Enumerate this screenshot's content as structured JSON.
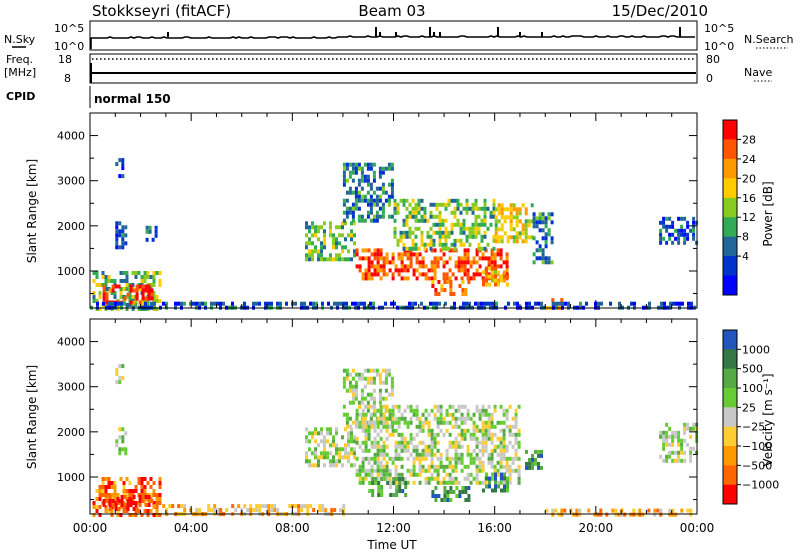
{
  "header": {
    "station": "Stokkseyri (fitACF)",
    "beam": "Beam 03",
    "date": "15/Dec/2010"
  },
  "top_panels": {
    "nsky_label": "N.Sky",
    "nsky_ticks": [
      "10^5",
      "10^0"
    ],
    "nsearch_label": "N.Search",
    "nsearch_ticks": [
      "10^5",
      "10^0"
    ],
    "freq_label_1": "Freq.",
    "freq_label_2": "[MHz]",
    "freq_ticks": [
      "18",
      "8"
    ],
    "nave_label": "Nave",
    "nave_ticks": [
      "80",
      "0"
    ],
    "cpid_label": "CPID",
    "cpid_value": "normal 150"
  },
  "colorbars": {
    "power": {
      "label": "Power [dB]",
      "ticks": [
        "28",
        "24",
        "20",
        "16",
        "12",
        "8",
        "4"
      ],
      "colors": [
        "#ff0000",
        "#ff5500",
        "#ff9900",
        "#ffcc00",
        "#88cc22",
        "#33aa55",
        "#226699",
        "#0033cc",
        "#0000ff"
      ]
    },
    "velocity": {
      "label": "Velocity [m s⁻¹]",
      "ticks": [
        "1000",
        "500",
        "100",
        "25",
        "−25",
        "−100",
        "−500",
        "−1000"
      ],
      "colors": [
        "#2255bb",
        "#337744",
        "#55aa44",
        "#66cc33",
        "#c8c8c8",
        "#ffcc33",
        "#ff9900",
        "#ff6600",
        "#ff0000"
      ]
    }
  },
  "chart_data": [
    {
      "type": "heatmap",
      "name": "Power",
      "ylabel": "Slant Range [km]",
      "xlabel": "",
      "ylim": [
        180,
        4500
      ],
      "yticks": [
        1000,
        2000,
        3000,
        4000
      ],
      "xlim": [
        0,
        24
      ],
      "xtick_labels": [],
      "blobs": [
        {
          "t0": 0.1,
          "t1": 2.8,
          "r0": 200,
          "r1": 1000,
          "level": 0.45
        },
        {
          "t0": 0.5,
          "t1": 2.5,
          "r0": 300,
          "r1": 700,
          "level": 0.9
        },
        {
          "t0": 1.0,
          "t1": 1.3,
          "r0": 3100,
          "r1": 3500,
          "level": 0.15
        },
        {
          "t0": 1.0,
          "t1": 1.4,
          "r0": 1500,
          "r1": 2100,
          "level": 0.2
        },
        {
          "t0": 2.2,
          "t1": 2.6,
          "r0": 1700,
          "r1": 2000,
          "level": 0.3
        },
        {
          "t0": 8.5,
          "t1": 10.5,
          "r0": 1300,
          "r1": 2100,
          "level": 0.45
        },
        {
          "t0": 10.0,
          "t1": 12.0,
          "r0": 2100,
          "r1": 3400,
          "level": 0.3
        },
        {
          "t0": 10.5,
          "t1": 16.5,
          "r0": 850,
          "r1": 1500,
          "level": 0.85
        },
        {
          "t0": 12.0,
          "t1": 16.0,
          "r0": 1500,
          "r1": 2600,
          "level": 0.45
        },
        {
          "t0": 13.5,
          "t1": 15.0,
          "r0": 500,
          "r1": 800,
          "level": 0.75
        },
        {
          "t0": 16.0,
          "t1": 17.5,
          "r0": 1700,
          "r1": 2500,
          "level": 0.6
        },
        {
          "t0": 15.5,
          "t1": 16.5,
          "r0": 700,
          "r1": 1100,
          "level": 0.7
        },
        {
          "t0": 17.5,
          "t1": 18.3,
          "r0": 1200,
          "r1": 2300,
          "level": 0.3
        },
        {
          "t0": 18.0,
          "t1": 18.7,
          "r0": 200,
          "r1": 400,
          "level": 0.8
        },
        {
          "t0": 22.5,
          "t1": 24.0,
          "r0": 1600,
          "r1": 2200,
          "level": 0.2
        },
        {
          "t0": 0.0,
          "t1": 24.0,
          "r0": 180,
          "r1": 320,
          "level": 0.2
        }
      ]
    },
    {
      "type": "heatmap",
      "name": "Velocity",
      "ylabel": "Slant Range [km]",
      "xlabel": "Time UT",
      "ylim": [
        180,
        4500
      ],
      "yticks": [
        1000,
        2000,
        3000,
        4000
      ],
      "xlim": [
        0,
        24
      ],
      "xtick_labels": [
        "00:00",
        "04:00",
        "08:00",
        "12:00",
        "16:00",
        "20:00",
        "00:00"
      ],
      "blobs": [
        {
          "t0": 0.1,
          "t1": 2.8,
          "r0": 200,
          "r1": 1000,
          "level": 0.2
        },
        {
          "t0": 0.5,
          "t1": 2.5,
          "r0": 250,
          "r1": 600,
          "level": 0.05
        },
        {
          "t0": 1.0,
          "t1": 1.3,
          "r0": 3100,
          "r1": 3500,
          "level": 0.55
        },
        {
          "t0": 1.0,
          "t1": 1.4,
          "r0": 1500,
          "r1": 2100,
          "level": 0.55
        },
        {
          "t0": 8.5,
          "t1": 10.5,
          "r0": 1300,
          "r1": 2100,
          "level": 0.55
        },
        {
          "t0": 10.0,
          "t1": 12.0,
          "r0": 2100,
          "r1": 3400,
          "level": 0.55
        },
        {
          "t0": 10.5,
          "t1": 17.0,
          "r0": 900,
          "r1": 2600,
          "level": 0.55
        },
        {
          "t0": 13.5,
          "t1": 15.0,
          "r0": 500,
          "r1": 800,
          "level": 0.8
        },
        {
          "t0": 15.5,
          "t1": 16.5,
          "r0": 700,
          "r1": 1100,
          "level": 0.8
        },
        {
          "t0": 17.2,
          "t1": 17.8,
          "r0": 1200,
          "r1": 1600,
          "level": 0.82
        },
        {
          "t0": 11.0,
          "t1": 12.5,
          "r0": 600,
          "r1": 1000,
          "level": 0.72
        },
        {
          "t0": 22.5,
          "t1": 24.0,
          "r0": 1400,
          "r1": 2200,
          "level": 0.55
        },
        {
          "t0": 2.5,
          "t1": 10.0,
          "r0": 180,
          "r1": 400,
          "level": 0.35
        },
        {
          "t0": 18.0,
          "t1": 24.0,
          "r0": 180,
          "r1": 300,
          "level": 0.35
        }
      ]
    }
  ]
}
